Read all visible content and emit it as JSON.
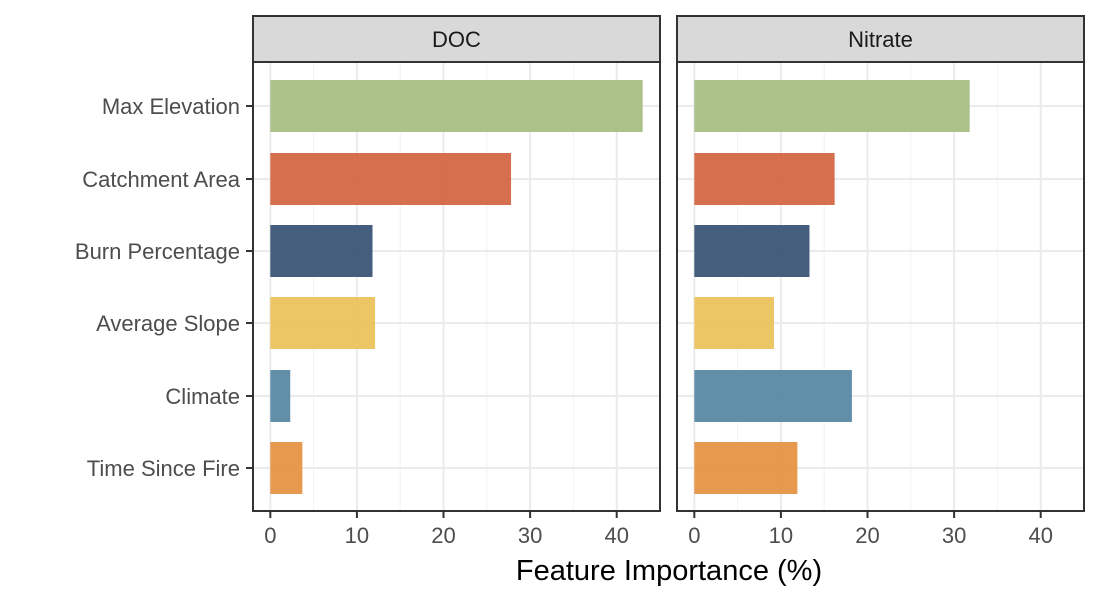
{
  "chart_data": {
    "type": "bar",
    "orientation": "horizontal",
    "categories": [
      "Max Elevation",
      "Catchment Area",
      "Burn Percentage",
      "Average Slope",
      "Climate",
      "Time Since Fire"
    ],
    "category_colors": [
      "#a9bf84",
      "#d46743",
      "#3b5577",
      "#ebc25c",
      "#5889a4",
      "#e69344"
    ],
    "xlabel": "Feature Importance (%)",
    "ylabel": "",
    "xlim": [
      -2,
      45
    ],
    "x_ticks": [
      0,
      10,
      20,
      30,
      40
    ],
    "x_tick_labels": [
      "0",
      "10",
      "20",
      "30",
      "40"
    ],
    "grid": true,
    "panels": [
      {
        "title": "DOC",
        "values": [
          43.0,
          27.8,
          11.8,
          12.1,
          2.3,
          3.7
        ]
      },
      {
        "title": "Nitrate",
        "values": [
          31.8,
          16.2,
          13.3,
          9.2,
          18.2,
          11.9
        ]
      }
    ]
  }
}
